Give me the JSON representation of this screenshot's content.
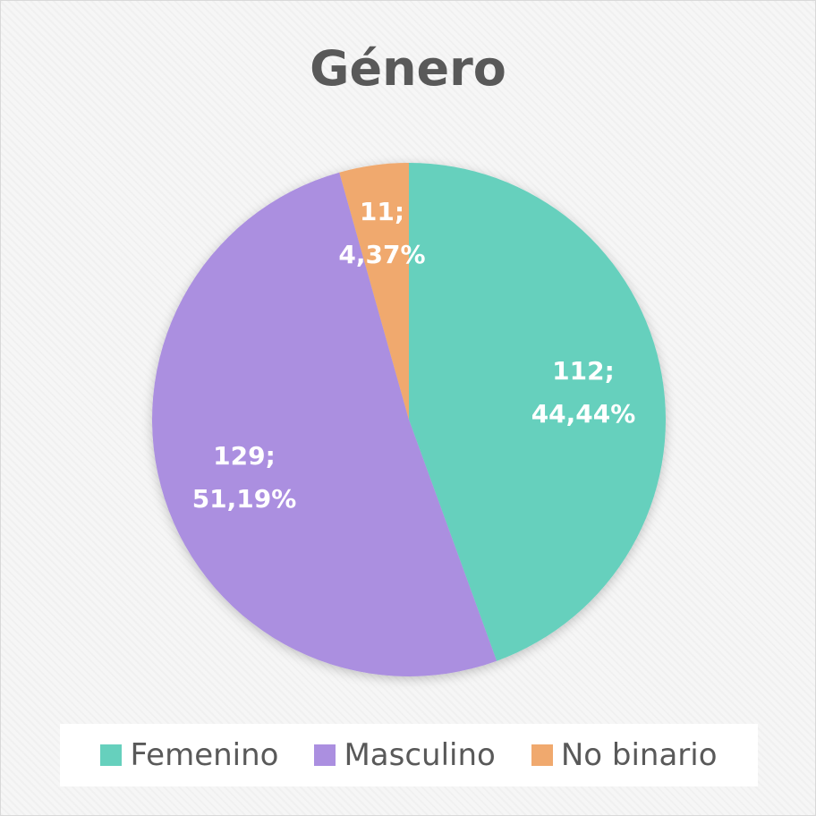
{
  "chart_data": {
    "type": "pie",
    "title": "Género",
    "categories": [
      "Femenino",
      "Masculino",
      "No binario"
    ],
    "values": [
      112,
      129,
      11
    ],
    "percent_labels": [
      "44,44%",
      "51,19%",
      "4,37%"
    ],
    "data_labels": [
      {
        "line1": "112;",
        "line2": "44,44%"
      },
      {
        "line1": "129;",
        "line2": "51,19%"
      },
      {
        "line1": "11;",
        "line2": "4,37%"
      }
    ],
    "colors": [
      "#66d0bd",
      "#ab8fe0",
      "#f0a96e"
    ],
    "legend": {
      "position": "bottom",
      "entries": [
        "Femenino",
        "Masculino",
        "No binario"
      ]
    }
  }
}
